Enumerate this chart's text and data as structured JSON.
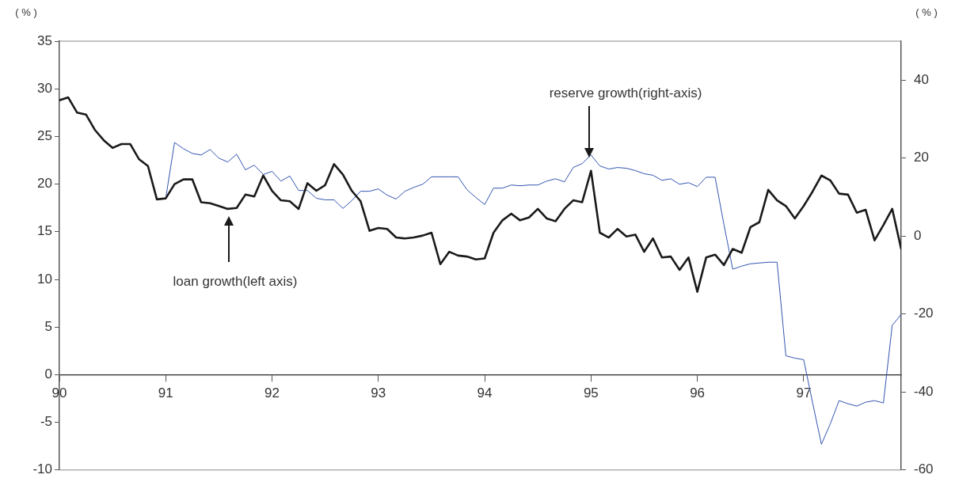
{
  "chart_data": {
    "type": "line",
    "ylabel": "( % )",
    "y2label": "( % )",
    "x": [
      90,
      90.083,
      90.167,
      90.25,
      90.333,
      90.417,
      90.5,
      90.583,
      90.667,
      90.75,
      90.833,
      90.917,
      91,
      91.083,
      91.167,
      91.25,
      91.333,
      91.417,
      91.5,
      91.583,
      91.667,
      91.75,
      91.833,
      91.917,
      92,
      92.083,
      92.167,
      92.25,
      92.333,
      92.417,
      92.5,
      92.583,
      92.667,
      92.75,
      92.833,
      92.917,
      93,
      93.083,
      93.167,
      93.25,
      93.333,
      93.417,
      93.5,
      93.583,
      93.667,
      93.75,
      93.833,
      93.917,
      94,
      94.083,
      94.167,
      94.25,
      94.333,
      94.417,
      94.5,
      94.583,
      94.667,
      94.75,
      94.833,
      94.917,
      95,
      95.083,
      95.167,
      95.25,
      95.333,
      95.417,
      95.5,
      95.583,
      95.667,
      95.75,
      95.833,
      95.917,
      96,
      96.083,
      96.167,
      96.25,
      96.333,
      96.417,
      96.5,
      96.583,
      96.667,
      96.75,
      96.833,
      96.917,
      97,
      97.083,
      97.167,
      97.25,
      97.333,
      97.417,
      97.5,
      97.583,
      97.667,
      97.75,
      97.833,
      97.917
    ],
    "series": [
      {
        "color": "#1a1a1a",
        "values": [
          28.8,
          29.1,
          27.5,
          27.3,
          25.7,
          24.6,
          23.8,
          24.2,
          24.2,
          22.6,
          21.9,
          18.4,
          18.5,
          20.0,
          20.5,
          20.5,
          18.1,
          18.0,
          17.7,
          17.4,
          17.5,
          18.9,
          18.7,
          20.9,
          19.3,
          18.3,
          18.2,
          17.4,
          20.1,
          19.3,
          19.9,
          22.1,
          21.0,
          19.3,
          18.2,
          15.1,
          15.4,
          15.3,
          14.4,
          14.3,
          14.4,
          14.6,
          14.9,
          11.6,
          12.9,
          12.5,
          12.4,
          12.1,
          12.2,
          14.9,
          16.2,
          16.9,
          16.2,
          16.5,
          17.4,
          16.4,
          16.1,
          17.4,
          18.3,
          18.1,
          21.4,
          14.9,
          14.4,
          15.3,
          14.5,
          14.7,
          12.9,
          14.3,
          12.3,
          12.4,
          11.0,
          12.3,
          8.7,
          12.3,
          12.6,
          11.5,
          13.2,
          12.8,
          15.5,
          16.0,
          19.4,
          18.3,
          17.7,
          16.4,
          17.7,
          19.2,
          20.9,
          20.4,
          19.0,
          18.9,
          17.0,
          17.3,
          14.1,
          15.7,
          17.4,
          13.2
        ]
      },
      {
        "color": "#3355b0",
        "axis": "y2",
        "values": [
          null,
          null,
          null,
          null,
          null,
          null,
          null,
          null,
          null,
          null,
          null,
          null,
          9.7,
          24.0,
          22.4,
          21.2,
          20.8,
          22.2,
          20.0,
          19.0,
          21.0,
          17.0,
          18.2,
          15.8,
          16.6,
          14.1,
          15.4,
          11.7,
          11.7,
          9.7,
          9.3,
          9.3,
          7.1,
          9.1,
          11.5,
          11.5,
          12.1,
          10.5,
          9.5,
          11.5,
          12.5,
          13.3,
          15.2,
          15.2,
          15.2,
          15.2,
          11.9,
          9.9,
          8.1,
          12.3,
          12.3,
          13.1,
          12.9,
          13.1,
          13.1,
          14.1,
          14.7,
          13.9,
          17.6,
          18.6,
          20.8,
          18.0,
          17.2,
          17.6,
          17.4,
          16.8,
          16.0,
          15.6,
          14.3,
          14.7,
          13.3,
          13.7,
          12.7,
          15.1,
          15.1,
          3,
          -8.5,
          -7.7,
          -7.1,
          -6.9,
          -6.7,
          -6.7,
          -30.7,
          -31.3,
          -31.7,
          -42.6,
          -53.4,
          -48.2,
          -42.2,
          -43.0,
          -43.6,
          -42.6,
          -42.2,
          -42.8,
          -22.9,
          -20.1
        ]
      }
    ],
    "xlim": [
      90,
      97.917
    ],
    "xticks": [
      90,
      91,
      92,
      93,
      94,
      95,
      96,
      97
    ],
    "ylim": [
      -10,
      35
    ],
    "yticks": [
      -10,
      -5,
      0,
      5,
      10,
      15,
      20,
      25,
      30,
      35
    ],
    "y2lim": [
      -60,
      50
    ],
    "y2ticks": [
      -60,
      -40,
      -20,
      0,
      20,
      40
    ],
    "grid": false,
    "legend": false,
    "marker": "none",
    "line_style": "solid",
    "annotations": [
      "loan growth(left axis)",
      "reserve growth(right-axis)"
    ]
  }
}
